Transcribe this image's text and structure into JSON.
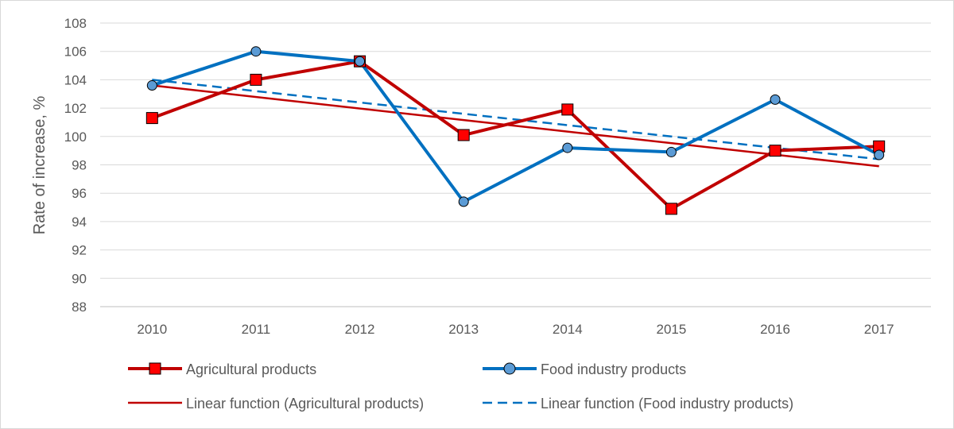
{
  "chart_data": {
    "type": "line",
    "ylabel": "Rate of increase, %",
    "xlabel": "",
    "categories": [
      "2010",
      "2011",
      "2012",
      "2013",
      "2014",
      "2015",
      "2016",
      "2017"
    ],
    "ylim": [
      88,
      108
    ],
    "yticks": [
      88,
      90,
      92,
      94,
      96,
      98,
      100,
      102,
      104,
      106,
      108
    ],
    "grid": true,
    "legend_position": "bottom",
    "series": [
      {
        "name": "Agricultural products",
        "values": [
          101.3,
          104.0,
          105.3,
          100.1,
          101.9,
          94.9,
          99.0,
          99.3
        ],
        "color": "#c00000",
        "marker": "square",
        "marker_fill": "#ff0000"
      },
      {
        "name": "Food industry products",
        "values": [
          103.6,
          106.0,
          105.3,
          95.4,
          99.2,
          98.9,
          102.6,
          98.7
        ],
        "color": "#0070c0",
        "marker": "circle",
        "marker_fill": "#5b9bd5"
      }
    ],
    "trendlines": [
      {
        "name": "Linear function (Agricultural products)",
        "start": 103.6,
        "end": 97.9,
        "color": "#c00000",
        "style": "solid"
      },
      {
        "name": "Linear function (Food industry products)",
        "start": 104.0,
        "end": 98.4,
        "color": "#0070c0",
        "style": "dashed"
      }
    ]
  }
}
